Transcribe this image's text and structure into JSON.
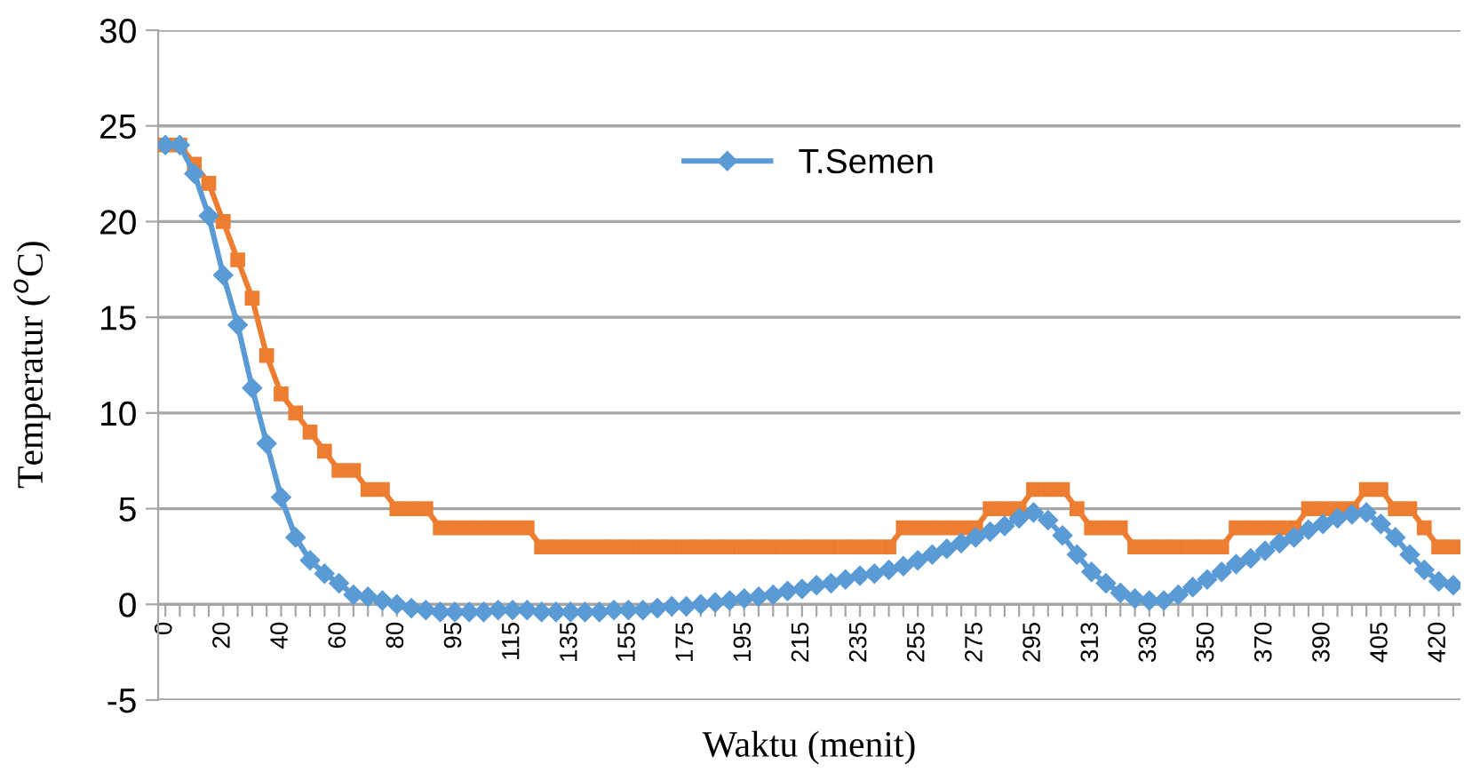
{
  "chart_data": {
    "type": "line",
    "xlabel": "Waktu (menit)",
    "ylabel": "Temperatur ($^{o}$C)",
    "categories": [
      "0",
      null,
      null,
      null,
      "20",
      null,
      null,
      null,
      "40",
      null,
      null,
      null,
      "60",
      null,
      null,
      null,
      "80",
      null,
      null,
      null,
      "95",
      null,
      null,
      null,
      "115",
      null,
      null,
      null,
      "135",
      null,
      null,
      null,
      "155",
      null,
      null,
      null,
      "175",
      null,
      null,
      null,
      "195",
      null,
      null,
      null,
      "215",
      null,
      null,
      null,
      "235",
      null,
      null,
      null,
      "255",
      null,
      null,
      null,
      "275",
      null,
      null,
      null,
      "295",
      null,
      null,
      null,
      "313",
      null,
      null,
      null,
      "330",
      null,
      null,
      null,
      "350",
      null,
      null,
      null,
      "370",
      null,
      null,
      null,
      "390",
      null,
      null,
      null,
      "405",
      null,
      null,
      null,
      "420",
      null
    ],
    "series": [
      {
        "name": "T.Semen",
        "color": "#5b9bd5",
        "marker": "diamond",
        "values": [
          24,
          24,
          22.5,
          20.3,
          17.2,
          14.6,
          11.3,
          8.4,
          5.6,
          3.5,
          2.3,
          1.6,
          1.1,
          0.5,
          0.4,
          0.2,
          0,
          -0.2,
          -0.3,
          -0.4,
          -0.4,
          -0.4,
          -0.4,
          -0.3,
          -0.3,
          -0.3,
          -0.4,
          -0.4,
          -0.4,
          -0.4,
          -0.4,
          -0.3,
          -0.3,
          -0.3,
          -0.2,
          -0.1,
          -0.1,
          0,
          0.1,
          0.2,
          0.3,
          0.4,
          0.5,
          0.7,
          0.8,
          1.0,
          1.1,
          1.3,
          1.5,
          1.6,
          1.8,
          2.0,
          2.3,
          2.6,
          2.9,
          3.2,
          3.5,
          3.8,
          4.1,
          4.5,
          4.8,
          4.4,
          3.6,
          2.6,
          1.7,
          1.1,
          0.6,
          0.3,
          0.2,
          0.2,
          0.5,
          0.9,
          1.3,
          1.7,
          2.1,
          2.4,
          2.8,
          3.2,
          3.5,
          3.9,
          4.2,
          4.5,
          4.7,
          4.8,
          4.2,
          3.5,
          2.6,
          1.8,
          1.2,
          1.0
        ]
      },
      {
        "color": "#ed7d31",
        "marker": "square",
        "values": [
          24,
          24,
          23,
          22,
          20,
          18,
          16,
          13,
          11,
          10,
          9,
          8,
          7,
          7,
          6,
          6,
          5,
          5,
          5,
          4,
          4,
          4,
          4,
          4,
          4,
          4,
          3,
          3,
          3,
          3,
          3,
          3,
          3,
          3,
          3,
          3,
          3,
          3,
          3,
          3,
          3,
          3,
          3,
          3,
          3,
          3,
          3,
          3,
          3,
          3,
          3,
          4,
          4,
          4,
          4,
          4,
          4,
          5,
          5,
          5,
          6,
          6,
          6,
          5,
          4,
          4,
          4,
          3,
          3,
          3,
          3,
          3,
          3,
          3,
          4,
          4,
          4,
          4,
          4,
          5,
          5,
          5,
          5,
          6,
          6,
          5,
          5,
          4,
          3,
          3
        ]
      }
    ],
    "ylim": [
      -5,
      30
    ],
    "yticks": [
      -5,
      0,
      5,
      10,
      15,
      20,
      25,
      30
    ],
    "grid": "y",
    "legend": "top",
    "line_style": "solid"
  }
}
